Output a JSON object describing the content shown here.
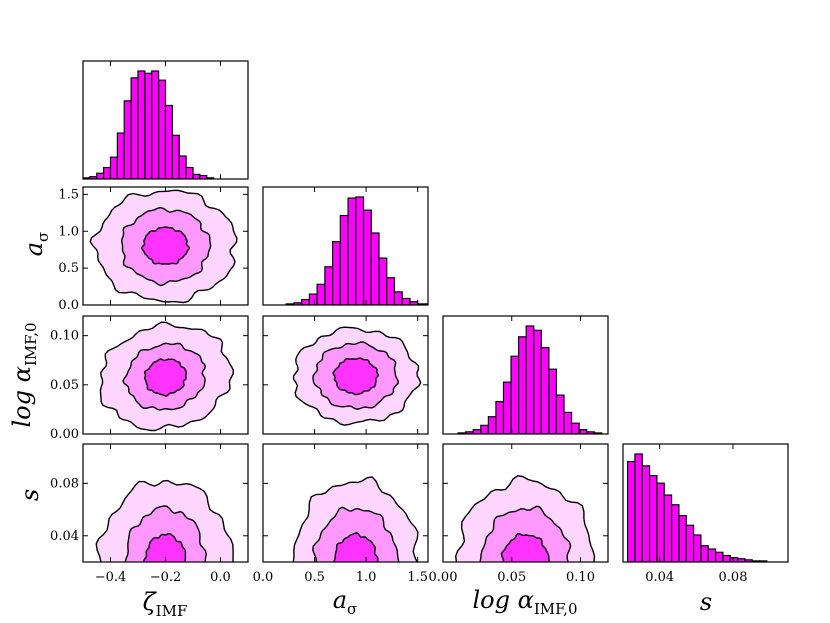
{
  "chart_data": {
    "type": "corner",
    "title": "",
    "colors": {
      "hist": "#ff00ff",
      "level3": "#ff33ff",
      "level2": "#ff99ff",
      "level1": "#ffd6ff",
      "line": "#000000"
    },
    "parameters": [
      {
        "key": "zeta",
        "label": "ζ",
        "sub": "IMF",
        "range": [
          -0.5,
          0.1
        ],
        "ticks": [
          -0.4,
          -0.2,
          0.0
        ],
        "tick_labels": [
          "−0.4",
          "−0.2",
          "0.0"
        ]
      },
      {
        "key": "asig",
        "label": "a",
        "sub": "σ",
        "range": [
          0.0,
          1.6
        ],
        "ticks": [
          0.0,
          0.5,
          1.0,
          1.5
        ],
        "tick_labels": [
          "0.0",
          "0.5",
          "1.0",
          "1.5"
        ]
      },
      {
        "key": "logalpha",
        "label": "log α",
        "sub": "IMF,0",
        "range": [
          0.0,
          0.12
        ],
        "ticks": [
          0.0,
          0.05,
          0.1
        ],
        "tick_labels": [
          "0.00",
          "0.05",
          "0.10"
        ]
      },
      {
        "key": "s",
        "label": "s",
        "sub": "",
        "range": [
          0.02,
          0.11
        ],
        "ticks": [
          0.04,
          0.08
        ],
        "tick_labels": [
          "0.04",
          "0.08"
        ]
      }
    ],
    "histograms": [
      {
        "param": "zeta",
        "x_start": -0.5,
        "bin_width": 0.025,
        "counts": [
          1,
          2,
          5,
          10,
          19,
          40,
          68,
          88,
          94,
          92,
          94,
          86,
          64,
          38,
          20,
          10,
          4,
          3,
          1,
          0,
          0,
          0,
          0,
          0
        ]
      },
      {
        "param": "asig",
        "x_start": 0.0,
        "bin_width": 0.075,
        "counts": [
          0,
          0,
          0,
          1,
          2,
          5,
          10,
          19,
          35,
          58,
          82,
          98,
          99,
          87,
          66,
          43,
          25,
          12,
          6,
          3,
          1,
          1
        ]
      },
      {
        "param": "logalpha",
        "x_start": 0.0,
        "bin_width": 0.0055,
        "counts": [
          0,
          0,
          1,
          2,
          4,
          8,
          16,
          30,
          48,
          72,
          90,
          100,
          96,
          80,
          60,
          36,
          20,
          10,
          4,
          2,
          1,
          0
        ]
      },
      {
        "param": "s",
        "x_start": 0.0225,
        "bin_width": 0.004,
        "counts": [
          93,
          100,
          89,
          80,
          73,
          62,
          53,
          43,
          34,
          25,
          15,
          12,
          9,
          6,
          4,
          3,
          2,
          1,
          1,
          0,
          0,
          0
        ]
      }
    ],
    "contours": [
      {
        "x": "zeta",
        "y": "asig",
        "levels": [
          {
            "cx": -0.2,
            "cy": 0.8,
            "rx": 0.082,
            "ry": 0.25,
            "rot": 0
          },
          {
            "cx": -0.2,
            "cy": 0.8,
            "rx": 0.16,
            "ry": 0.5,
            "rot": 0
          },
          {
            "cx": -0.2,
            "cy": 0.8,
            "rx": 0.255,
            "ry": 0.75,
            "rot": 0
          }
        ]
      },
      {
        "x": "zeta",
        "y": "logalpha",
        "levels": [
          {
            "cx": -0.2,
            "cy": 0.058,
            "rx": 0.075,
            "ry": 0.018,
            "rot": -12
          },
          {
            "cx": -0.2,
            "cy": 0.058,
            "rx": 0.145,
            "ry": 0.033,
            "rot": -12
          },
          {
            "cx": -0.2,
            "cy": 0.058,
            "rx": 0.24,
            "ry": 0.052,
            "rot": -12
          }
        ]
      },
      {
        "x": "asig",
        "y": "logalpha",
        "levels": [
          {
            "cx": 0.9,
            "cy": 0.059,
            "rx": 0.21,
            "ry": 0.018,
            "rot": 0
          },
          {
            "cx": 0.9,
            "cy": 0.059,
            "rx": 0.4,
            "ry": 0.033,
            "rot": 0
          },
          {
            "cx": 0.9,
            "cy": 0.059,
            "rx": 0.6,
            "ry": 0.048,
            "rot": 0
          }
        ]
      },
      {
        "x": "zeta",
        "y": "s",
        "levels": [
          {
            "cx": -0.2,
            "cy": 0.02,
            "rx": 0.075,
            "ry": 0.021,
            "rot": 0
          },
          {
            "cx": -0.2,
            "cy": 0.02,
            "rx": 0.145,
            "ry": 0.041,
            "rot": 0
          },
          {
            "cx": -0.2,
            "cy": 0.02,
            "rx": 0.24,
            "ry": 0.062,
            "rot": 0
          }
        ]
      },
      {
        "x": "asig",
        "y": "s",
        "levels": [
          {
            "cx": 0.9,
            "cy": 0.02,
            "rx": 0.21,
            "ry": 0.021,
            "rot": 0
          },
          {
            "cx": 0.9,
            "cy": 0.02,
            "rx": 0.4,
            "ry": 0.041,
            "rot": 0
          },
          {
            "cx": 0.9,
            "cy": 0.02,
            "rx": 0.6,
            "ry": 0.062,
            "rot": 0
          }
        ]
      },
      {
        "x": "logalpha",
        "y": "s",
        "levels": [
          {
            "cx": 0.06,
            "cy": 0.02,
            "rx": 0.017,
            "ry": 0.021,
            "rot": 0
          },
          {
            "cx": 0.06,
            "cy": 0.02,
            "rx": 0.032,
            "ry": 0.041,
            "rot": 0
          },
          {
            "cx": 0.06,
            "cy": 0.02,
            "rx": 0.05,
            "ry": 0.062,
            "rot": 0
          }
        ]
      }
    ]
  }
}
